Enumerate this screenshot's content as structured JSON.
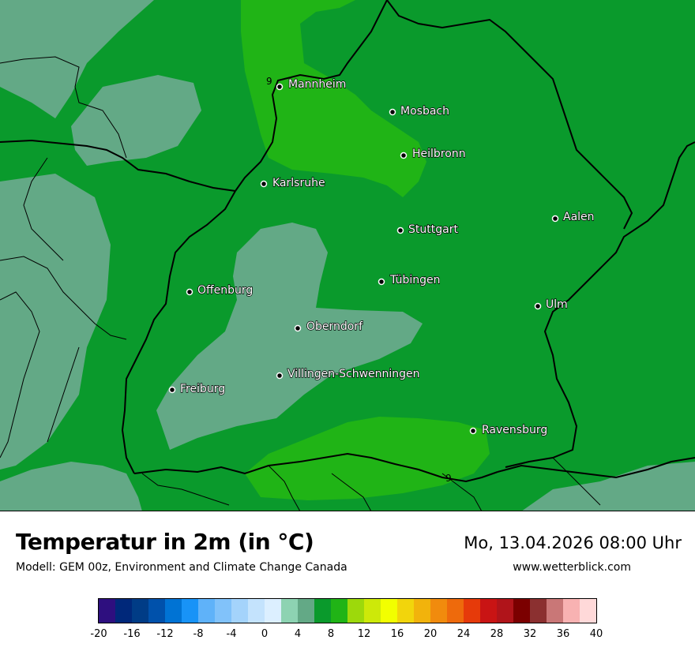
{
  "header": {
    "title": "Temperatur in 2m (in °C)",
    "model": "Modell: GEM 00z, Environment and Climate Change Canada",
    "datetime": "Mo, 13.04.2026 08:00 Uhr",
    "website": "www.wetterblick.com"
  },
  "map": {
    "region": "Baden-Württemberg",
    "field_colors": {
      "t6_8": "#0a9a2c",
      "t8_10": "#20b416",
      "t4_6": "#63a986",
      "below_4": "#8dd3b2"
    },
    "cities": [
      {
        "name": "Mannheim"
      },
      {
        "name": "Mosbach"
      },
      {
        "name": "Heilbronn"
      },
      {
        "name": "Karlsruhe"
      },
      {
        "name": "Aalen"
      },
      {
        "name": "Stuttgart"
      },
      {
        "name": "Tübingen"
      },
      {
        "name": "Offenburg"
      },
      {
        "name": "Ulm"
      },
      {
        "name": "Oberndorf"
      },
      {
        "name": "Villingen-Schwenningen"
      },
      {
        "name": "Freiburg"
      },
      {
        "name": "Ravensburg"
      }
    ],
    "value_labels": [
      "9",
      "9"
    ]
  },
  "legend": {
    "colors": [
      "#2e0f7f",
      "#00287a",
      "#003c86",
      "#0051ab",
      "#0073d4",
      "#1893f7",
      "#5fb2f9",
      "#81c2fa",
      "#a4d3fb",
      "#c4e3fd",
      "#dcefff",
      "#8dd3b2",
      "#63a986",
      "#0a9a2c",
      "#20b416",
      "#9dd90b",
      "#cde909",
      "#f2ff00",
      "#f2d50c",
      "#f2b30c",
      "#f18b0d",
      "#ee6a0c",
      "#e63a0a",
      "#c91414",
      "#b0141a",
      "#7b0000",
      "#8b3030",
      "#c97777",
      "#f8b2b2",
      "#ffd9d9"
    ],
    "ticks": [
      "-20",
      "-16",
      "-12",
      "-8",
      "-4",
      "0",
      "4",
      "8",
      "12",
      "16",
      "20",
      "24",
      "28",
      "32",
      "36",
      "40"
    ]
  }
}
